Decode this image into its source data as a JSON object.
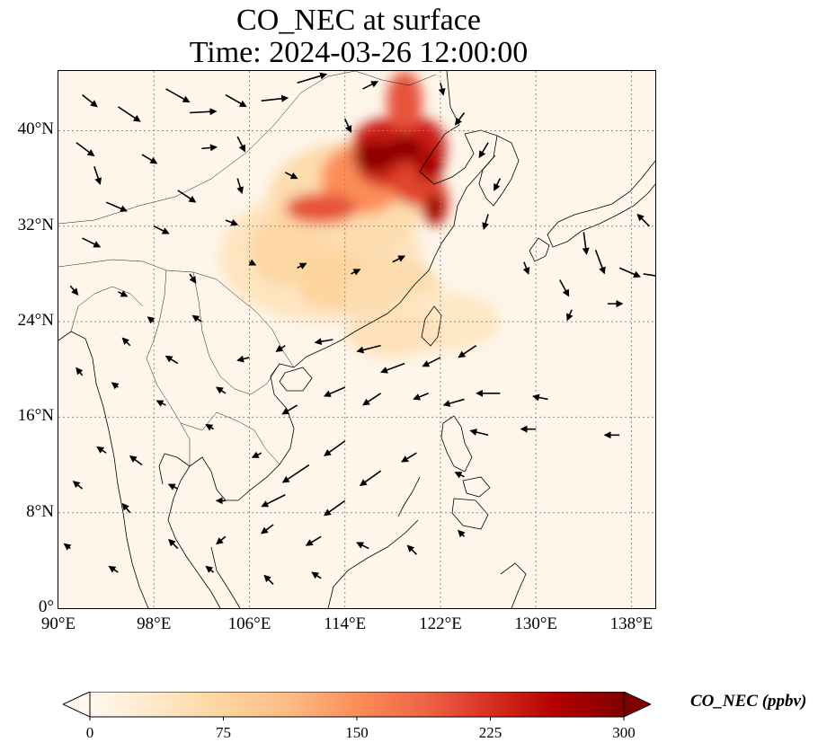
{
  "title": {
    "line1": "CO_NEC at surface",
    "line2": "Time: 2024-03-26 12:00:00"
  },
  "map": {
    "lon_range": [
      90,
      140
    ],
    "lat_range": [
      0,
      45
    ],
    "lat_ticks": [
      {
        "value": 0,
        "label": "0°"
      },
      {
        "value": 8,
        "label": "8°N"
      },
      {
        "value": 16,
        "label": "16°N"
      },
      {
        "value": 24,
        "label": "24°N"
      },
      {
        "value": 32,
        "label": "32°N"
      },
      {
        "value": 40,
        "label": "40°N"
      }
    ],
    "lon_ticks": [
      {
        "value": 90,
        "label": "90°E"
      },
      {
        "value": 98,
        "label": "98°E"
      },
      {
        "value": 106,
        "label": "106°E"
      },
      {
        "value": 114,
        "label": "114°E"
      },
      {
        "value": 122,
        "label": "122°E"
      },
      {
        "value": 130,
        "label": "130°E"
      },
      {
        "value": 138,
        "label": "138°E"
      }
    ],
    "gridlines": true,
    "background_color": "#fef6ea",
    "concentration_field": [
      {
        "lon": 112,
        "lat": 29.5,
        "rlon": 8.5,
        "rlat": 5.5,
        "level": 45
      },
      {
        "lon": 114,
        "lat": 34,
        "rlon": 6.5,
        "rlat": 5,
        "level": 60
      },
      {
        "lon": 109,
        "lat": 30,
        "rlon": 3,
        "rlat": 3,
        "level": 70
      },
      {
        "lon": 113,
        "lat": 27.5,
        "rlon": 3,
        "rlat": 2.5,
        "level": 75
      },
      {
        "lon": 118,
        "lat": 26.5,
        "rlon": 4,
        "rlat": 3,
        "level": 60
      },
      {
        "lon": 122,
        "lat": 24,
        "rlon": 5,
        "rlat": 2.5,
        "level": 40
      },
      {
        "lon": 118,
        "lat": 23,
        "rlon": 4,
        "rlat": 2,
        "level": 50
      },
      {
        "lon": 115.5,
        "lat": 36,
        "rlon": 3.5,
        "rlat": 3,
        "level": 150
      },
      {
        "lon": 117.5,
        "lat": 39,
        "rlon": 2.8,
        "rlat": 2,
        "level": 240
      },
      {
        "lon": 118,
        "lat": 37,
        "rlon": 3,
        "rlat": 1.8,
        "level": 230
      },
      {
        "lon": 120.5,
        "lat": 38.5,
        "rlon": 2,
        "rlat": 2.5,
        "level": 240
      },
      {
        "lon": 120,
        "lat": 35.5,
        "rlon": 2,
        "rlat": 1.8,
        "level": 210
      },
      {
        "lon": 121.5,
        "lat": 34,
        "rlon": 1.2,
        "rlat": 2,
        "level": 210
      },
      {
        "lon": 119,
        "lat": 42.5,
        "rlon": 1.5,
        "rlat": 2.5,
        "level": 200
      },
      {
        "lon": 112,
        "lat": 33.5,
        "rlon": 3,
        "rlat": 1.3,
        "level": 200
      },
      {
        "lon": 116.5,
        "lat": 37.8,
        "rlon": 1.8,
        "rlat": 1.3,
        "level": 290
      },
      {
        "lon": 119,
        "lat": 38.5,
        "rlon": 1.5,
        "rlat": 1,
        "level": 290
      },
      {
        "lon": 121,
        "lat": 37,
        "rlon": 1.2,
        "rlat": 1.2,
        "level": 270
      },
      {
        "lon": 121.5,
        "lat": 33.5,
        "rlon": 0.8,
        "rlat": 1.2,
        "level": 280
      }
    ],
    "wind_vectors": [
      {
        "lon": 91.5,
        "lat": 39,
        "u": 1.2,
        "v": -0.9
      },
      {
        "lon": 92,
        "lat": 43,
        "u": 1.0,
        "v": -0.8
      },
      {
        "lon": 95,
        "lat": 42,
        "u": 1.5,
        "v": -1.0
      },
      {
        "lon": 99,
        "lat": 43.5,
        "u": 1.6,
        "v": -0.9
      },
      {
        "lon": 101,
        "lat": 41.5,
        "u": 1.8,
        "v": 0.1
      },
      {
        "lon": 104,
        "lat": 43,
        "u": 1.4,
        "v": -0.8
      },
      {
        "lon": 107,
        "lat": 42.5,
        "u": 1.8,
        "v": 0.2
      },
      {
        "lon": 110,
        "lat": 44,
        "u": 2.0,
        "v": 0.6
      },
      {
        "lon": 93,
        "lat": 37,
        "u": 0.4,
        "v": -1.2
      },
      {
        "lon": 97,
        "lat": 38,
        "u": 1.0,
        "v": -0.6
      },
      {
        "lon": 102,
        "lat": 38.5,
        "u": 1.0,
        "v": 0.1
      },
      {
        "lon": 105,
        "lat": 39.5,
        "u": 0.5,
        "v": -1.0
      },
      {
        "lon": 100,
        "lat": 35,
        "u": 1.2,
        "v": -0.8
      },
      {
        "lon": 94,
        "lat": 34,
        "u": 1.4,
        "v": -0.6
      },
      {
        "lon": 105,
        "lat": 36,
        "u": 0.3,
        "v": -1.0
      },
      {
        "lon": 109,
        "lat": 36.5,
        "u": 0.8,
        "v": -0.4
      },
      {
        "lon": 104,
        "lat": 32.5,
        "u": 0.8,
        "v": -0.3
      },
      {
        "lon": 98,
        "lat": 32,
        "u": 1.0,
        "v": -0.5
      },
      {
        "lon": 92,
        "lat": 31,
        "u": 1.2,
        "v": -0.6
      },
      {
        "lon": 91,
        "lat": 27,
        "u": 0.5,
        "v": -0.6
      },
      {
        "lon": 95,
        "lat": 26.5,
        "u": 0.6,
        "v": -0.3
      },
      {
        "lon": 101,
        "lat": 28,
        "u": 0.4,
        "v": -0.6
      },
      {
        "lon": 106,
        "lat": 29,
        "u": 0.4,
        "v": -0.2
      },
      {
        "lon": 110,
        "lat": 28.5,
        "u": 0.6,
        "v": 0.3
      },
      {
        "lon": 114.5,
        "lat": 28,
        "u": 0.6,
        "v": 0.3
      },
      {
        "lon": 118,
        "lat": 29,
        "u": 0.8,
        "v": 0.4
      },
      {
        "lon": 114,
        "lat": 41,
        "u": 0.4,
        "v": -0.9
      },
      {
        "lon": 115.5,
        "lat": 43.5,
        "u": 1.0,
        "v": 0.5
      },
      {
        "lon": 124,
        "lat": 41.5,
        "u": -0.6,
        "v": -0.8
      },
      {
        "lon": 122,
        "lat": 44,
        "u": 0.2,
        "v": -0.8
      },
      {
        "lon": 126,
        "lat": 39,
        "u": -0.6,
        "v": -1.0
      },
      {
        "lon": 127,
        "lat": 36,
        "u": -0.4,
        "v": -0.8
      },
      {
        "lon": 126,
        "lat": 33,
        "u": -0.3,
        "v": -1.0
      },
      {
        "lon": 129,
        "lat": 29,
        "u": 0.3,
        "v": -0.8
      },
      {
        "lon": 132,
        "lat": 27.5,
        "u": 0.6,
        "v": -1.1
      },
      {
        "lon": 133,
        "lat": 25,
        "u": -0.3,
        "v": -0.7
      },
      {
        "lon": 134,
        "lat": 31.5,
        "u": 0.2,
        "v": -1.5
      },
      {
        "lon": 135,
        "lat": 30,
        "u": 0.6,
        "v": -1.6
      },
      {
        "lon": 137,
        "lat": 28.5,
        "u": 1.4,
        "v": -0.6
      },
      {
        "lon": 139,
        "lat": 28,
        "u": 2.0,
        "v": -0.3
      },
      {
        "lon": 139.5,
        "lat": 32,
        "u": -0.8,
        "v": 0.8
      },
      {
        "lon": 136,
        "lat": 25.5,
        "u": 1.0,
        "v": 0.0
      },
      {
        "lon": 125,
        "lat": 22,
        "u": -1.2,
        "v": -0.8
      },
      {
        "lon": 122,
        "lat": 21,
        "u": -1.2,
        "v": -0.6
      },
      {
        "lon": 117,
        "lat": 22,
        "u": -1.6,
        "v": -0.4
      },
      {
        "lon": 113,
        "lat": 22.5,
        "u": -1.2,
        "v": -0.2
      },
      {
        "lon": 109,
        "lat": 22,
        "u": -0.6,
        "v": -0.4
      },
      {
        "lon": 119,
        "lat": 20.5,
        "u": -1.6,
        "v": -0.6
      },
      {
        "lon": 117,
        "lat": 18,
        "u": -1.2,
        "v": -0.8
      },
      {
        "lon": 114,
        "lat": 18.5,
        "u": -1.4,
        "v": -0.6
      },
      {
        "lon": 110,
        "lat": 17,
        "u": -1.0,
        "v": -0.6
      },
      {
        "lon": 121,
        "lat": 18,
        "u": -1.0,
        "v": -0.4
      },
      {
        "lon": 124,
        "lat": 17.5,
        "u": -1.4,
        "v": -0.4
      },
      {
        "lon": 127,
        "lat": 18,
        "u": -1.6,
        "v": 0.0
      },
      {
        "lon": 131,
        "lat": 17.5,
        "u": -1.0,
        "v": 0.2
      },
      {
        "lon": 126,
        "lat": 14.5,
        "u": -1.2,
        "v": 0.3
      },
      {
        "lon": 130,
        "lat": 15,
        "u": -1.0,
        "v": 0.0
      },
      {
        "lon": 137,
        "lat": 14.5,
        "u": -1.0,
        "v": 0.0
      },
      {
        "lon": 114,
        "lat": 14,
        "u": -1.4,
        "v": -1.0
      },
      {
        "lon": 111,
        "lat": 12,
        "u": -1.8,
        "v": -1.2
      },
      {
        "lon": 117,
        "lat": 11.5,
        "u": -1.4,
        "v": -1.0
      },
      {
        "lon": 114,
        "lat": 9,
        "u": -1.4,
        "v": -1.0
      },
      {
        "lon": 109,
        "lat": 9.5,
        "u": -1.6,
        "v": -0.8
      },
      {
        "lon": 112,
        "lat": 6,
        "u": -1.0,
        "v": -0.6
      },
      {
        "lon": 108,
        "lat": 7,
        "u": -0.8,
        "v": -0.6
      },
      {
        "lon": 104,
        "lat": 6,
        "u": -0.6,
        "v": -0.5
      },
      {
        "lon": 104,
        "lat": 9,
        "u": -0.6,
        "v": 0.0
      },
      {
        "lon": 100,
        "lat": 10,
        "u": -0.6,
        "v": 0.3
      },
      {
        "lon": 97,
        "lat": 12,
        "u": -0.8,
        "v": 0.6
      },
      {
        "lon": 94,
        "lat": 13,
        "u": -0.6,
        "v": 0.4
      },
      {
        "lon": 92,
        "lat": 10,
        "u": -0.6,
        "v": 0.5
      },
      {
        "lon": 96,
        "lat": 8,
        "u": -0.5,
        "v": 0.6
      },
      {
        "lon": 100,
        "lat": 5,
        "u": -0.6,
        "v": 0.6
      },
      {
        "lon": 95,
        "lat": 3,
        "u": -0.6,
        "v": 0.4
      },
      {
        "lon": 91,
        "lat": 5,
        "u": -0.4,
        "v": 0.3
      },
      {
        "lon": 103,
        "lat": 3,
        "u": -0.5,
        "v": 0.4
      },
      {
        "lon": 108,
        "lat": 2,
        "u": -0.6,
        "v": 0.6
      },
      {
        "lon": 112,
        "lat": 2.5,
        "u": -0.6,
        "v": 0.4
      },
      {
        "lon": 116,
        "lat": 5,
        "u": -0.8,
        "v": 0.4
      },
      {
        "lon": 120,
        "lat": 4.5,
        "u": -0.6,
        "v": 0.6
      },
      {
        "lon": 124,
        "lat": 6,
        "u": -0.4,
        "v": 0.4
      },
      {
        "lon": 124,
        "lat": 11,
        "u": -0.6,
        "v": 0.3
      },
      {
        "lon": 120,
        "lat": 13,
        "u": -1.0,
        "v": -0.6
      },
      {
        "lon": 107,
        "lat": 13,
        "u": -0.6,
        "v": -0.3
      },
      {
        "lon": 103,
        "lat": 15,
        "u": -0.5,
        "v": 0.3
      },
      {
        "lon": 99,
        "lat": 17,
        "u": -0.6,
        "v": 0.3
      },
      {
        "lon": 95,
        "lat": 18.5,
        "u": -0.4,
        "v": 0.3
      },
      {
        "lon": 92,
        "lat": 19.5,
        "u": -0.4,
        "v": 0.5
      },
      {
        "lon": 96,
        "lat": 22,
        "u": -0.5,
        "v": 0.5
      },
      {
        "lon": 100,
        "lat": 20.5,
        "u": -0.8,
        "v": 0.5
      },
      {
        "lon": 104,
        "lat": 18,
        "u": -0.6,
        "v": 0.4
      },
      {
        "lon": 106,
        "lat": 21,
        "u": -0.8,
        "v": -0.2
      },
      {
        "lon": 102,
        "lat": 24,
        "u": -0.6,
        "v": 0.4
      },
      {
        "lon": 98,
        "lat": 24,
        "u": -0.4,
        "v": 0.3
      }
    ]
  },
  "colorbar": {
    "label": "CO_NEC (ppbv)",
    "min": 0,
    "max": 300,
    "ticks": [
      {
        "value": 0,
        "label": "0"
      },
      {
        "value": 75,
        "label": "75"
      },
      {
        "value": 150,
        "label": "150"
      },
      {
        "value": 225,
        "label": "225"
      },
      {
        "value": 300,
        "label": "300"
      }
    ],
    "colormap": [
      "#fff7ec",
      "#fee8c8",
      "#fdd49e",
      "#fdbb84",
      "#fc8d59",
      "#ef6548",
      "#d7301f",
      "#b30000",
      "#7f0000"
    ]
  }
}
